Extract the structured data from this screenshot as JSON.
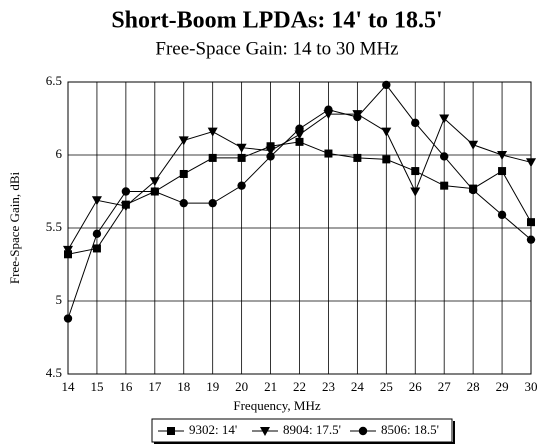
{
  "chart_data": {
    "type": "line",
    "title": "Short-Boom LPDAs: 14' to 18.5'",
    "subtitle": "Free-Space Gain: 14 to 30 MHz",
    "x_label": "Frequency, MHz",
    "y_label": "Free-Space Gain, dBi",
    "x": [
      14,
      15,
      16,
      17,
      18,
      19,
      20,
      21,
      22,
      23,
      24,
      25,
      26,
      27,
      28,
      29,
      30
    ],
    "xlim": [
      14,
      30
    ],
    "xticks": [
      14,
      15,
      16,
      17,
      18,
      19,
      20,
      21,
      22,
      23,
      24,
      25,
      26,
      27,
      28,
      29,
      30
    ],
    "ylim": [
      4.5,
      6.5
    ],
    "yticks": [
      4.5,
      5,
      5.5,
      6,
      6.5
    ],
    "grid": true,
    "legend": "bottom",
    "series": [
      {
        "name": "9302: 14'",
        "color": "#000000",
        "marker": "square",
        "values": [
          5.32,
          5.36,
          5.66,
          5.75,
          5.87,
          5.98,
          5.98,
          6.06,
          6.09,
          6.01,
          5.98,
          5.97,
          5.89,
          5.79,
          5.77,
          5.89,
          5.54
        ]
      },
      {
        "name": "8904: 17.5'",
        "color": "#000000",
        "marker": "triangle-down",
        "values": [
          5.35,
          5.69,
          5.65,
          5.82,
          6.1,
          6.16,
          6.05,
          6.03,
          6.14,
          6.28,
          6.28,
          6.16,
          5.75,
          6.25,
          6.07,
          6.0,
          5.95
        ]
      },
      {
        "name": "8506: 18.5'",
        "color": "#000000",
        "marker": "circle",
        "values": [
          4.88,
          5.46,
          5.75,
          5.75,
          5.67,
          5.67,
          5.79,
          5.99,
          6.18,
          6.31,
          6.26,
          6.48,
          6.22,
          5.99,
          5.76,
          5.59,
          5.42
        ]
      }
    ]
  }
}
